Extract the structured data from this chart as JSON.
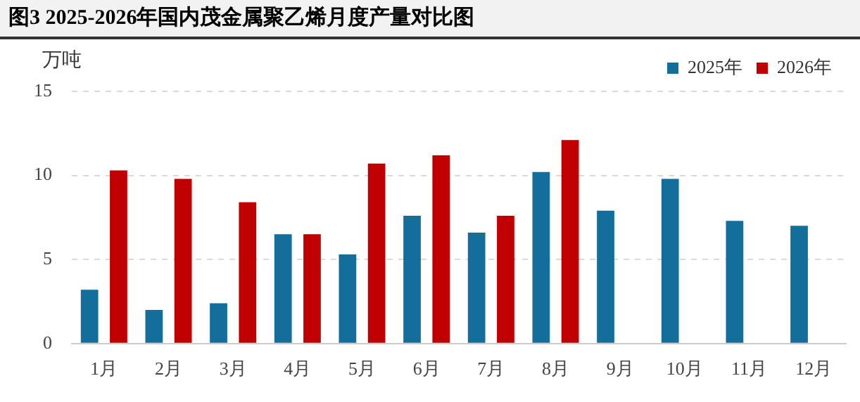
{
  "chart_data": {
    "type": "bar",
    "title": "图3 2025-2026年国内茂金属聚乙烯月度产量对比图",
    "ylabel": "万吨",
    "categories": [
      "1月",
      "2月",
      "3月",
      "4月",
      "5月",
      "6月",
      "7月",
      "8月",
      "9月",
      "10月",
      "11月",
      "12月"
    ],
    "series": [
      {
        "name": "2025年",
        "color": "#136e9c",
        "values": [
          3.2,
          2.0,
          2.4,
          6.5,
          5.3,
          7.6,
          6.6,
          10.2,
          7.9,
          9.8,
          7.3,
          7.0
        ]
      },
      {
        "name": "2026年",
        "color": "#c00000",
        "values": [
          10.3,
          9.8,
          8.4,
          6.5,
          10.7,
          11.2,
          7.6,
          12.1,
          null,
          null,
          null,
          null
        ]
      }
    ],
    "ylim": [
      0,
      15
    ],
    "yticks": [
      0,
      5,
      10,
      15
    ],
    "grid": "y",
    "legend": "top right"
  }
}
